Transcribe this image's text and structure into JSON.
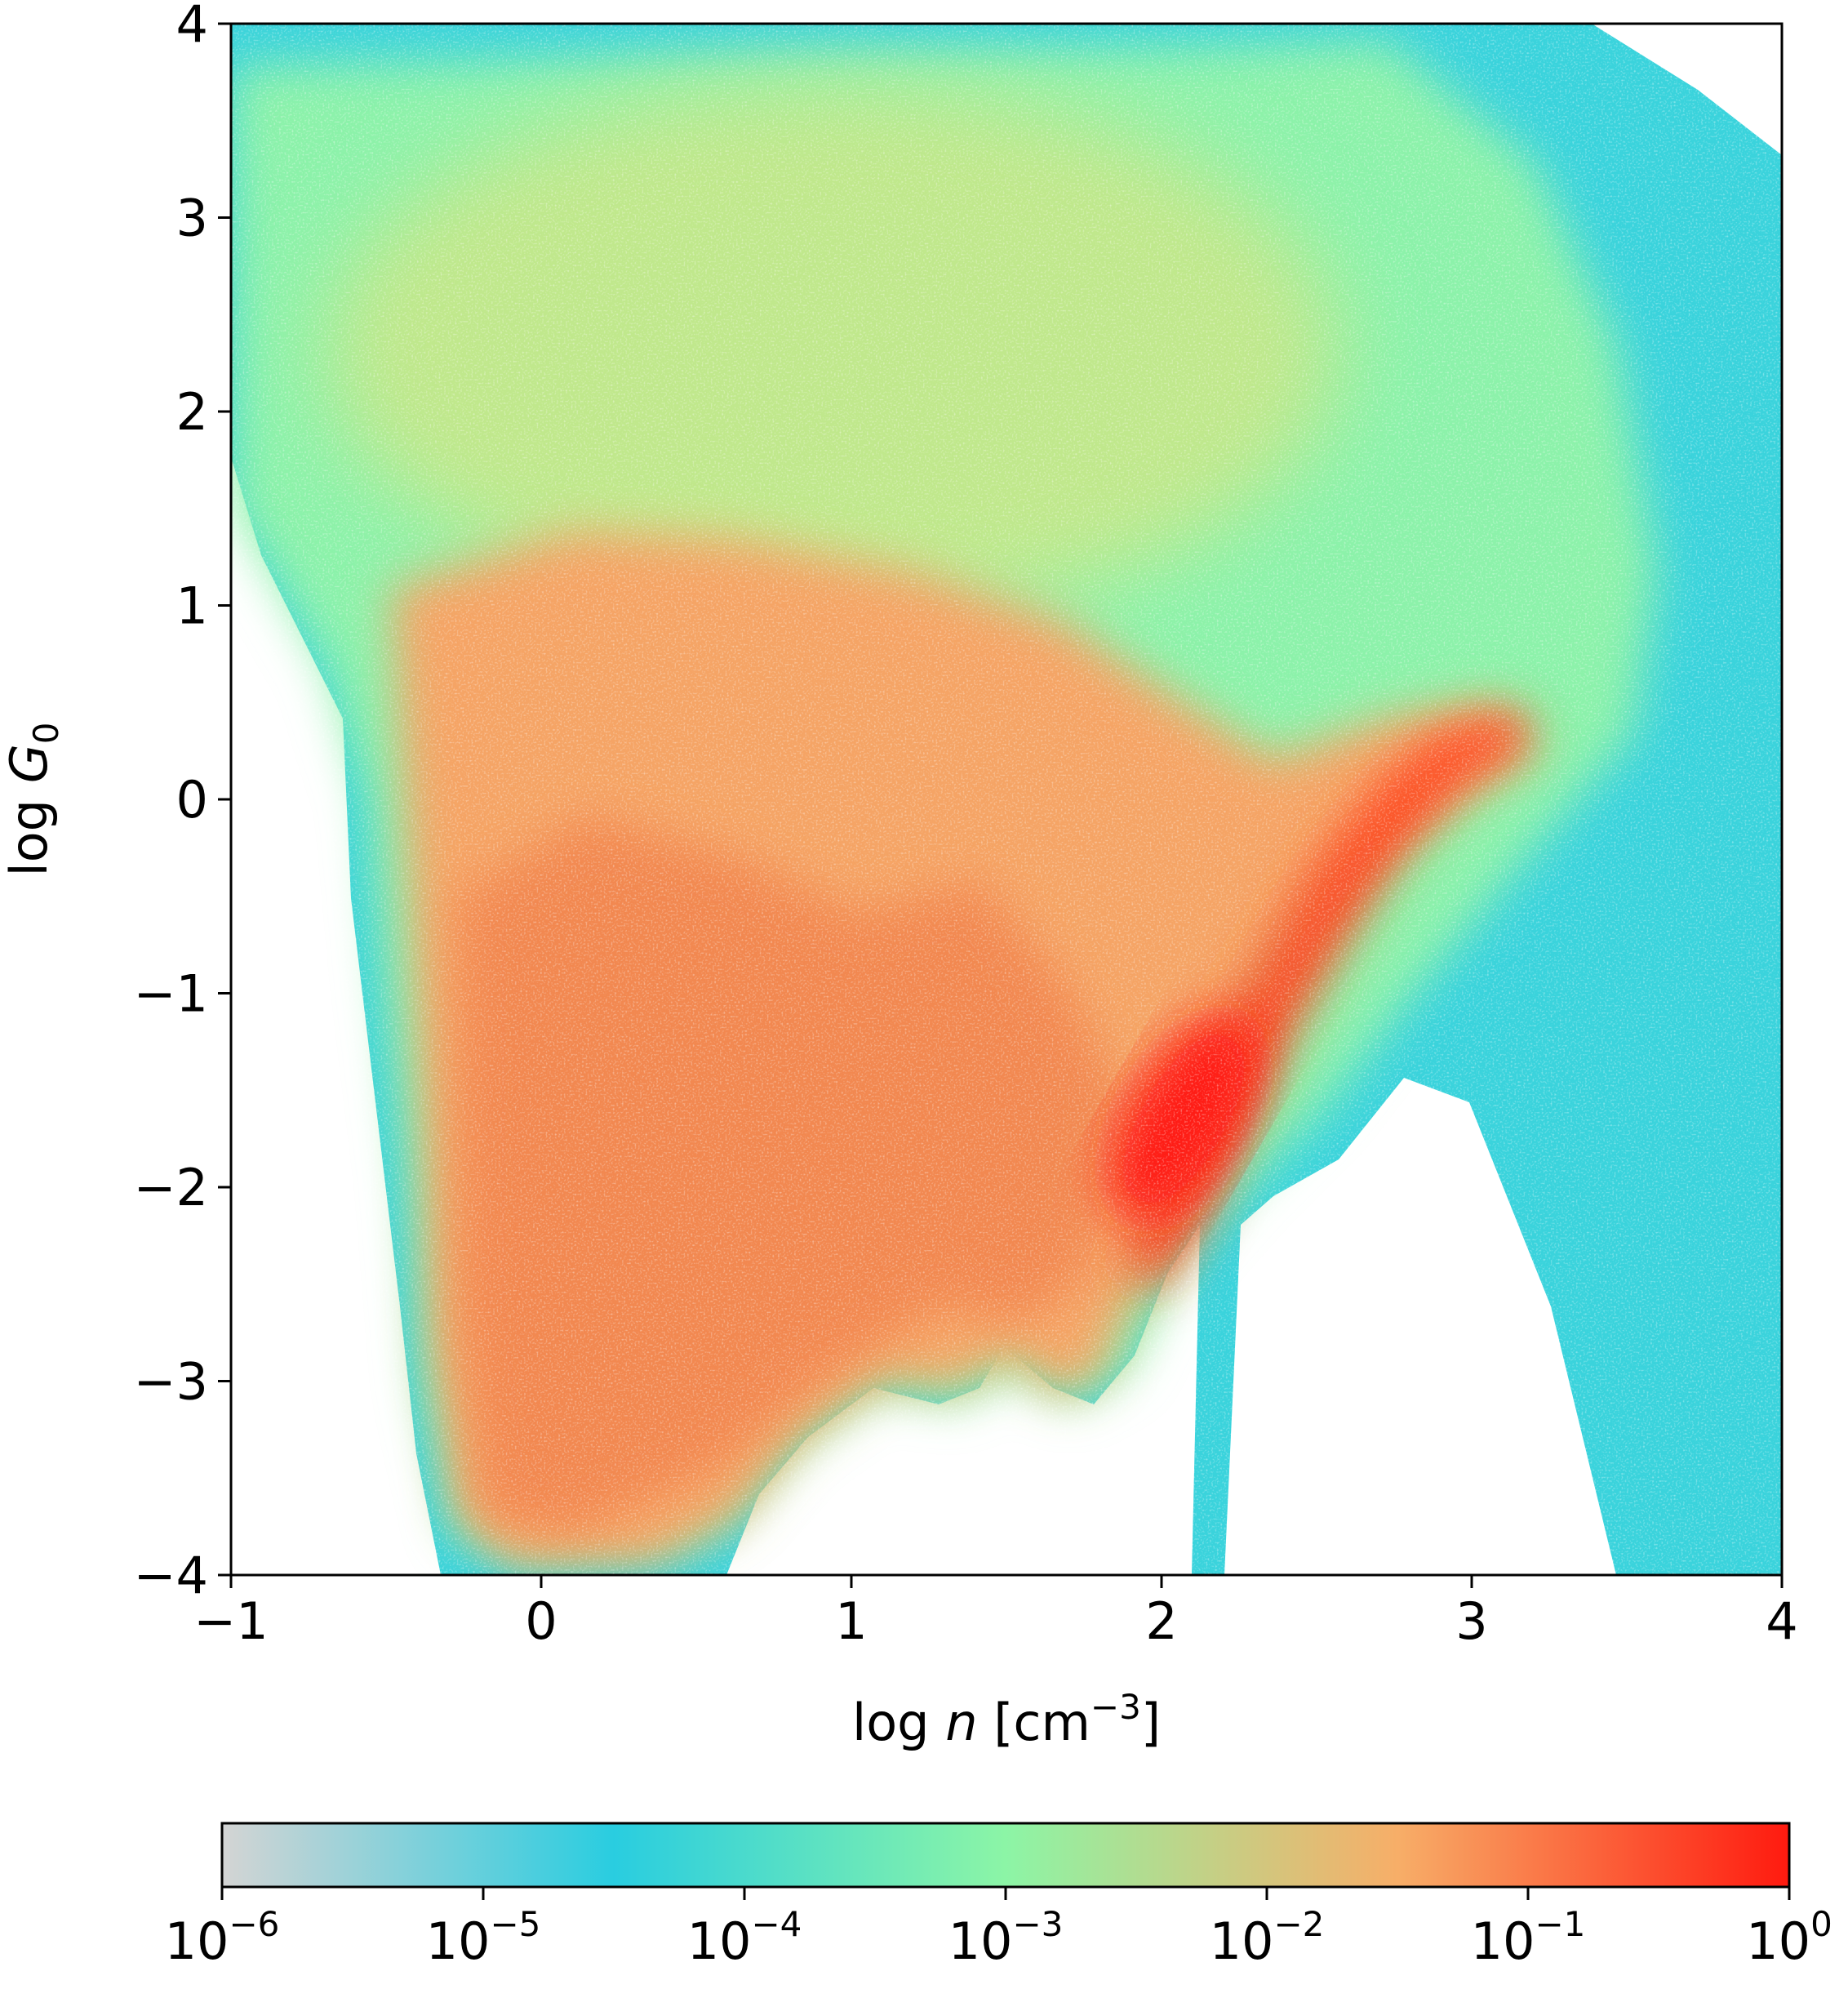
{
  "chart_data": {
    "type": "heatmap",
    "title": "",
    "xlabel": {
      "prefix": "log ",
      "var": "n",
      "unit_open": "  [cm",
      "unit_exp": "−3",
      "unit_close": "]"
    },
    "ylabel": {
      "prefix": "log ",
      "var": "G",
      "sub": "0"
    },
    "xlim": [
      -1,
      4
    ],
    "ylim": [
      -4,
      4
    ],
    "x_ticks": [
      -1,
      0,
      1,
      2,
      3,
      4
    ],
    "y_ticks": [
      -4,
      -3,
      -2,
      -1,
      0,
      1,
      2,
      3,
      4
    ],
    "x_tick_labels": [
      "−1",
      "0",
      "1",
      "2",
      "3",
      "4"
    ],
    "y_tick_labels": [
      "−4",
      "−3",
      "−2",
      "−1",
      "0",
      "1",
      "2",
      "3",
      "4"
    ],
    "grid": false,
    "colorbar": {
      "orientation": "horizontal",
      "placement": "bottom",
      "scale": "log",
      "range": [
        1e-06,
        1
      ],
      "tick_values": [
        1e-06,
        1e-05,
        0.0001,
        0.001,
        0.01,
        0.1,
        1
      ],
      "tick_labels": [
        {
          "base": "10",
          "exp": "−6"
        },
        {
          "base": "10",
          "exp": "−5"
        },
        {
          "base": "10",
          "exp": "−4"
        },
        {
          "base": "10",
          "exp": "−3"
        },
        {
          "base": "10",
          "exp": "−2"
        },
        {
          "base": "10",
          "exp": "−1"
        },
        {
          "base": "10",
          "exp": "0"
        }
      ],
      "colors": [
        "#d4d4d4",
        "#29cde0",
        "#8cf5a6",
        "#f7ae68",
        "#ff1a0f"
      ]
    },
    "density_ridges": [
      {
        "description": "main high-density filament",
        "points": [
          [
            1.8,
            -2.6
          ],
          [
            2.0,
            -2.0
          ],
          [
            2.2,
            -1.4
          ],
          [
            2.45,
            -0.7
          ],
          [
            2.8,
            0.1
          ],
          [
            3.05,
            0.35
          ]
        ],
        "peak_log_value": 0
      },
      {
        "description": "low-n broad spread",
        "points": [
          [
            0.0,
            -3.5
          ],
          [
            0.4,
            -1.5
          ],
          [
            0.8,
            -0.5
          ]
        ],
        "peak_log_value": -1
      }
    ]
  }
}
